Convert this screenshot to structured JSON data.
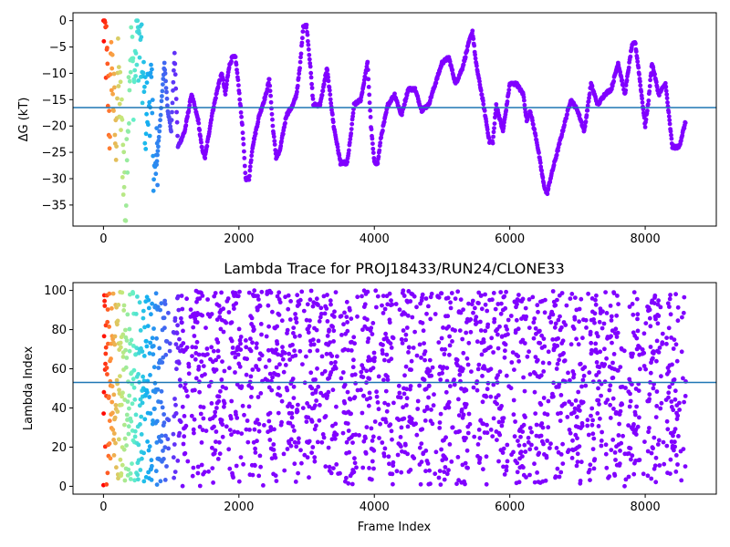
{
  "chart_data": [
    {
      "type": "scatter",
      "title": "",
      "xlabel": "",
      "ylabel": "ΔG (kT)",
      "xlim": [
        -450,
        9050
      ],
      "ylim": [
        -39,
        1.5
      ],
      "xticks": [
        0,
        2000,
        4000,
        6000,
        8000
      ],
      "xtick_labels": [
        "0",
        "2000",
        "4000",
        "6000",
        "8000"
      ],
      "yticks": [
        0,
        -5,
        -10,
        -15,
        -20,
        -25,
        -30,
        -35
      ],
      "ytick_labels": [
        "0",
        "−5",
        "−10",
        "−15",
        "−20",
        "−25",
        "−30",
        "−35"
      ],
      "hline": -16.5,
      "hline_color": "#1f77b4",
      "colormap": "rainbow",
      "color_note": "point color encodes frame index; red at frame 0 through yellow, green and blue to violet for later frames",
      "n_frames": 8600,
      "series": [
        {
          "points": [
            [
              0,
              0
            ],
            [
              30,
              -4
            ],
            [
              60,
              -12
            ],
            [
              90,
              -20
            ],
            [
              120,
              -7
            ],
            [
              150,
              -15
            ],
            [
              180,
              -24
            ],
            [
              210,
              -10
            ],
            [
              260,
              -18
            ],
            [
              300,
              -28
            ],
            [
              330,
              -38
            ],
            [
              360,
              -17
            ],
            [
              400,
              -5
            ],
            [
              450,
              -12
            ],
            [
              500,
              -2
            ],
            [
              560,
              -8
            ],
            [
              620,
              -18
            ],
            [
              700,
              -13
            ],
            [
              760,
              -31
            ],
            [
              820,
              -22
            ],
            [
              900,
              -8
            ],
            [
              950,
              -17
            ],
            [
              1000,
              -21
            ],
            [
              1050,
              -6
            ],
            [
              1100,
              -24
            ],
            [
              1200,
              -21
            ],
            [
              1300,
              -14
            ],
            [
              1400,
              -19
            ],
            [
              1450,
              -24
            ],
            [
              1500,
              -26
            ],
            [
              1600,
              -18
            ],
            [
              1700,
              -12
            ],
            [
              1750,
              -10
            ],
            [
              1800,
              -14
            ],
            [
              1850,
              -9
            ],
            [
              1900,
              -7
            ],
            [
              1950,
              -7
            ],
            [
              2000,
              -13
            ],
            [
              2050,
              -20
            ],
            [
              2100,
              -30
            ],
            [
              2150,
              -30
            ],
            [
              2200,
              -24
            ],
            [
              2300,
              -18
            ],
            [
              2400,
              -14
            ],
            [
              2450,
              -11
            ],
            [
              2500,
              -20
            ],
            [
              2550,
              -26
            ],
            [
              2600,
              -25
            ],
            [
              2700,
              -18
            ],
            [
              2800,
              -16
            ],
            [
              2850,
              -14
            ],
            [
              2900,
              -9
            ],
            [
              2950,
              -1
            ],
            [
              3000,
              -1
            ],
            [
              3050,
              -8
            ],
            [
              3100,
              -16
            ],
            [
              3200,
              -16
            ],
            [
              3300,
              -9
            ],
            [
              3400,
              -20
            ],
            [
              3500,
              -27
            ],
            [
              3600,
              -27
            ],
            [
              3650,
              -22
            ],
            [
              3700,
              -16
            ],
            [
              3800,
              -15
            ],
            [
              3900,
              -8
            ],
            [
              3950,
              -20
            ],
            [
              4000,
              -27
            ],
            [
              4050,
              -27
            ],
            [
              4100,
              -22
            ],
            [
              4200,
              -16
            ],
            [
              4300,
              -14
            ],
            [
              4400,
              -18
            ],
            [
              4500,
              -13
            ],
            [
              4600,
              -13
            ],
            [
              4700,
              -17
            ],
            [
              4800,
              -16
            ],
            [
              4900,
              -12
            ],
            [
              5000,
              -8
            ],
            [
              5100,
              -7
            ],
            [
              5200,
              -12
            ],
            [
              5300,
              -9
            ],
            [
              5400,
              -4
            ],
            [
              5450,
              -2
            ],
            [
              5500,
              -8
            ],
            [
              5600,
              -15
            ],
            [
              5700,
              -23
            ],
            [
              5750,
              -23
            ],
            [
              5800,
              -16
            ],
            [
              5900,
              -21
            ],
            [
              6000,
              -12
            ],
            [
              6100,
              -12
            ],
            [
              6200,
              -14
            ],
            [
              6250,
              -19
            ],
            [
              6300,
              -17
            ],
            [
              6400,
              -23
            ],
            [
              6500,
              -31
            ],
            [
              6550,
              -33
            ],
            [
              6600,
              -30
            ],
            [
              6700,
              -25
            ],
            [
              6800,
              -20
            ],
            [
              6900,
              -15
            ],
            [
              7000,
              -17
            ],
            [
              7100,
              -21
            ],
            [
              7200,
              -12
            ],
            [
              7300,
              -16
            ],
            [
              7400,
              -14
            ],
            [
              7500,
              -13
            ],
            [
              7600,
              -8
            ],
            [
              7700,
              -14
            ],
            [
              7800,
              -5
            ],
            [
              7850,
              -4
            ],
            [
              7900,
              -9
            ],
            [
              8000,
              -20
            ],
            [
              8050,
              -15
            ],
            [
              8100,
              -8
            ],
            [
              8200,
              -14
            ],
            [
              8300,
              -12
            ],
            [
              8400,
              -24
            ],
            [
              8500,
              -24
            ],
            [
              8600,
              -19
            ]
          ]
        }
      ]
    },
    {
      "type": "scatter",
      "title": "Lambda Trace for PROJ18433/RUN24/CLONE33",
      "xlabel": "Frame Index",
      "ylabel": "Lambda Index",
      "xlim": [
        -450,
        9050
      ],
      "ylim": [
        -4,
        104
      ],
      "xticks": [
        0,
        2000,
        4000,
        6000,
        8000
      ],
      "xtick_labels": [
        "0",
        "2000",
        "4000",
        "6000",
        "8000"
      ],
      "yticks": [
        0,
        20,
        40,
        60,
        80,
        100
      ],
      "ytick_labels": [
        "0",
        "20",
        "40",
        "60",
        "80",
        "100"
      ],
      "hline": 53,
      "hline_color": "#1f77b4",
      "colormap": "rainbow",
      "color_note": "point color encodes frame index; red at frame 0 through violet at the last frame",
      "n_frames": 8600,
      "series": [
        {
          "description": "lambda index sampled per frame, points fill the range 0 to 100 across all frames with denser clusters in vertical bands"
        }
      ]
    }
  ]
}
